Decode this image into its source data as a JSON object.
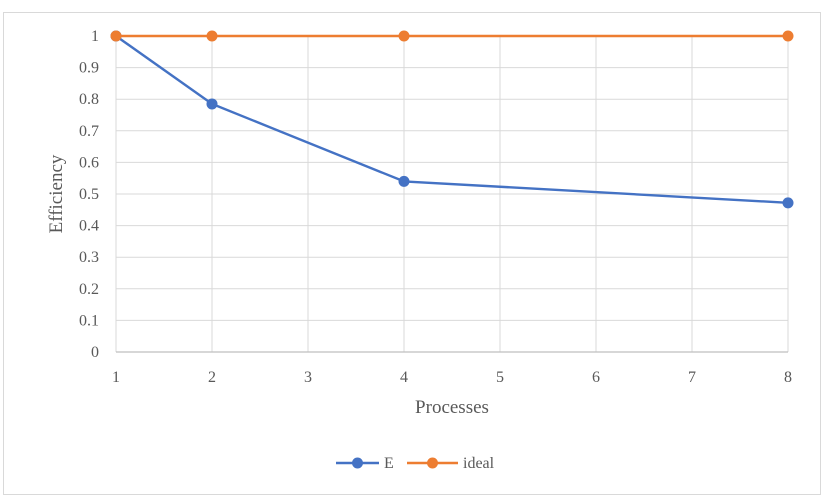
{
  "chart_data": {
    "type": "line",
    "title": "",
    "xlabel": "Processes",
    "ylabel": "Efficiency",
    "x_categories": [
      "1",
      "2",
      "3",
      "4",
      "5",
      "6",
      "7",
      "8"
    ],
    "y_ticks": [
      "0",
      "0.1",
      "0.2",
      "0.3",
      "0.4",
      "0.5",
      "0.6",
      "0.7",
      "0.8",
      "0.9",
      "1"
    ],
    "ylim": [
      0,
      1
    ],
    "grid": true,
    "legend_position": "bottom",
    "series": [
      {
        "name": "E",
        "color": "#4472c4",
        "points": [
          {
            "x": 1,
            "y": 1
          },
          {
            "x": 2,
            "y": 0.785
          },
          {
            "x": 4,
            "y": 0.54
          },
          {
            "x": 8,
            "y": 0.472
          }
        ]
      },
      {
        "name": "ideal",
        "color": "#ed7d31",
        "points": [
          {
            "x": 1,
            "y": 1
          },
          {
            "x": 2,
            "y": 1
          },
          {
            "x": 4,
            "y": 1
          },
          {
            "x": 8,
            "y": 1
          }
        ]
      }
    ]
  }
}
